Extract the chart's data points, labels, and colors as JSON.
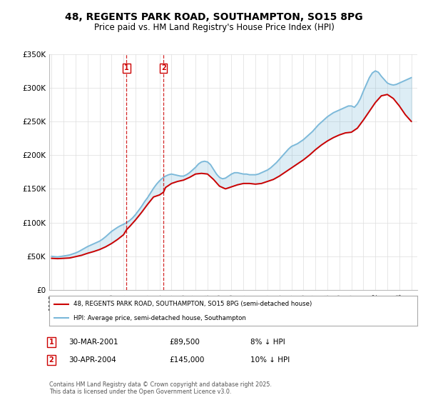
{
  "title": "48, REGENTS PARK ROAD, SOUTHAMPTON, SO15 8PG",
  "subtitle": "Price paid vs. HM Land Registry's House Price Index (HPI)",
  "title_fontsize": 10,
  "subtitle_fontsize": 8.5,
  "background_color": "#ffffff",
  "grid_color": "#dddddd",
  "ylim": [
    0,
    350000
  ],
  "yticks": [
    0,
    50000,
    100000,
    150000,
    200000,
    250000,
    300000,
    350000
  ],
  "ytick_labels": [
    "£0",
    "£50K",
    "£100K",
    "£150K",
    "£200K",
    "£250K",
    "£300K",
    "£350K"
  ],
  "xlim_start": 1994.8,
  "xlim_end": 2025.5,
  "purchase_dates": [
    2001.25,
    2004.33
  ],
  "purchase_prices": [
    89500,
    145000
  ],
  "purchase_labels": [
    "1",
    "2"
  ],
  "purchase_info": [
    {
      "label": "1",
      "date": "30-MAR-2001",
      "price": "£89,500",
      "hpi": "8% ↓ HPI"
    },
    {
      "label": "2",
      "date": "30-APR-2004",
      "price": "£145,000",
      "hpi": "10% ↓ HPI"
    }
  ],
  "legend_line1": "48, REGENTS PARK ROAD, SOUTHAMPTON, SO15 8PG (semi-detached house)",
  "legend_line2": "HPI: Average price, semi-detached house, Southampton",
  "copyright_text": "Contains HM Land Registry data © Crown copyright and database right 2025.\nThis data is licensed under the Open Government Licence v3.0.",
  "hpi_color": "#7ab8d9",
  "price_color": "#cc0000",
  "hpi_years": [
    1995.0,
    1995.25,
    1995.5,
    1995.75,
    1996.0,
    1996.25,
    1996.5,
    1996.75,
    1997.0,
    1997.25,
    1997.5,
    1997.75,
    1998.0,
    1998.25,
    1998.5,
    1998.75,
    1999.0,
    1999.25,
    1999.5,
    1999.75,
    2000.0,
    2000.25,
    2000.5,
    2000.75,
    2001.0,
    2001.25,
    2001.5,
    2001.75,
    2002.0,
    2002.25,
    2002.5,
    2002.75,
    2003.0,
    2003.25,
    2003.5,
    2003.75,
    2004.0,
    2004.25,
    2004.5,
    2004.75,
    2005.0,
    2005.25,
    2005.5,
    2005.75,
    2006.0,
    2006.25,
    2006.5,
    2006.75,
    2007.0,
    2007.25,
    2007.5,
    2007.75,
    2008.0,
    2008.25,
    2008.5,
    2008.75,
    2009.0,
    2009.25,
    2009.5,
    2009.75,
    2010.0,
    2010.25,
    2010.5,
    2010.75,
    2011.0,
    2011.25,
    2011.5,
    2011.75,
    2012.0,
    2012.25,
    2012.5,
    2012.75,
    2013.0,
    2013.25,
    2013.5,
    2013.75,
    2014.0,
    2014.25,
    2014.5,
    2014.75,
    2015.0,
    2015.25,
    2015.5,
    2015.75,
    2016.0,
    2016.25,
    2016.5,
    2016.75,
    2017.0,
    2017.25,
    2017.5,
    2017.75,
    2018.0,
    2018.25,
    2018.5,
    2018.75,
    2019.0,
    2019.25,
    2019.5,
    2019.75,
    2020.0,
    2020.25,
    2020.5,
    2020.75,
    2021.0,
    2021.25,
    2021.5,
    2021.75,
    2022.0,
    2022.25,
    2022.5,
    2022.75,
    2023.0,
    2023.25,
    2023.5,
    2023.75,
    2024.0,
    2024.25,
    2024.5,
    2024.75,
    2025.0
  ],
  "hpi_values": [
    50000,
    49500,
    49200,
    49800,
    50500,
    51200,
    52000,
    53500,
    55000,
    57000,
    59500,
    62000,
    64500,
    66500,
    68500,
    70500,
    72500,
    75500,
    79000,
    83000,
    87000,
    90000,
    93000,
    95500,
    97500,
    100000,
    103000,
    107000,
    112000,
    118000,
    124000,
    131000,
    137000,
    144000,
    151000,
    157000,
    162000,
    166000,
    169000,
    171000,
    172000,
    171000,
    170000,
    169000,
    169000,
    171000,
    174000,
    178000,
    182000,
    187000,
    190000,
    191000,
    190000,
    186000,
    179000,
    172000,
    167000,
    165000,
    166000,
    169000,
    172000,
    174000,
    174000,
    173000,
    172000,
    172000,
    171000,
    171000,
    171000,
    172000,
    174000,
    176000,
    178000,
    181000,
    185000,
    189000,
    194000,
    199000,
    204000,
    209000,
    213000,
    215000,
    217000,
    220000,
    223000,
    227000,
    231000,
    235000,
    240000,
    245000,
    249000,
    253000,
    257000,
    260000,
    263000,
    265000,
    267000,
    269000,
    271000,
    273000,
    273000,
    271000,
    276000,
    284000,
    295000,
    305000,
    315000,
    322000,
    325000,
    323000,
    317000,
    312000,
    307000,
    305000,
    304000,
    305000,
    307000,
    309000,
    311000,
    313000,
    315000
  ],
  "price_years": [
    1995.0,
    1995.5,
    1996.0,
    1996.5,
    1997.0,
    1997.5,
    1998.0,
    1998.5,
    1999.0,
    1999.5,
    2000.0,
    2000.5,
    2001.0,
    2001.25,
    2001.5,
    2002.0,
    2002.5,
    2003.0,
    2003.5,
    2004.0,
    2004.33,
    2004.5,
    2005.0,
    2005.5,
    2006.0,
    2006.5,
    2007.0,
    2007.5,
    2008.0,
    2008.5,
    2009.0,
    2009.5,
    2010.0,
    2010.5,
    2011.0,
    2011.5,
    2012.0,
    2012.5,
    2013.0,
    2013.5,
    2014.0,
    2014.5,
    2015.0,
    2015.5,
    2016.0,
    2016.5,
    2017.0,
    2017.5,
    2018.0,
    2018.5,
    2019.0,
    2019.5,
    2020.0,
    2020.5,
    2021.0,
    2021.5,
    2022.0,
    2022.5,
    2023.0,
    2023.5,
    2024.0,
    2024.5,
    2025.0
  ],
  "price_values": [
    47000,
    46500,
    47000,
    47500,
    49500,
    51500,
    54500,
    57000,
    60000,
    64000,
    69000,
    75000,
    82000,
    89500,
    94000,
    104000,
    115000,
    127000,
    138000,
    141000,
    145000,
    152000,
    158000,
    161000,
    163000,
    167000,
    172000,
    173000,
    172000,
    164000,
    154000,
    150000,
    153000,
    156000,
    158000,
    158000,
    157000,
    158000,
    161000,
    164000,
    169000,
    175000,
    181000,
    187000,
    193000,
    200000,
    208000,
    215000,
    221000,
    226000,
    230000,
    233000,
    234000,
    240000,
    252000,
    265000,
    278000,
    288000,
    290000,
    284000,
    273000,
    260000,
    250000
  ]
}
